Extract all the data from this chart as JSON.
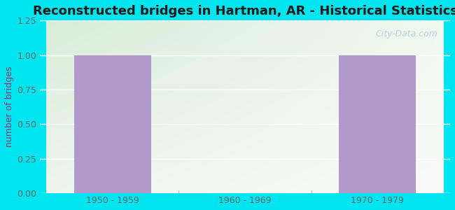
{
  "title": "Reconstructed bridges in Hartman, AR - Historical Statistics",
  "categories": [
    "1950 - 1959",
    "1960 - 1969",
    "1970 - 1979"
  ],
  "values": [
    1,
    0,
    1
  ],
  "bar_color": "#b299cc",
  "ylabel": "number of bridges",
  "ylim": [
    0,
    1.25
  ],
  "yticks": [
    0,
    0.25,
    0.5,
    0.75,
    1,
    1.25
  ],
  "background_outer": "#00e5f0",
  "bg_top_left": "#d8edd8",
  "bg_top_right": "#eef5ee",
  "bg_bottom_left": "#eef5f0",
  "bg_bottom_right": "#f8faf8",
  "grid_color": "#ffffff",
  "title_fontsize": 13,
  "axis_label_fontsize": 9,
  "tick_fontsize": 9,
  "watermark": "City-Data.com",
  "tick_color": "#666666",
  "ylabel_color": "#993366"
}
